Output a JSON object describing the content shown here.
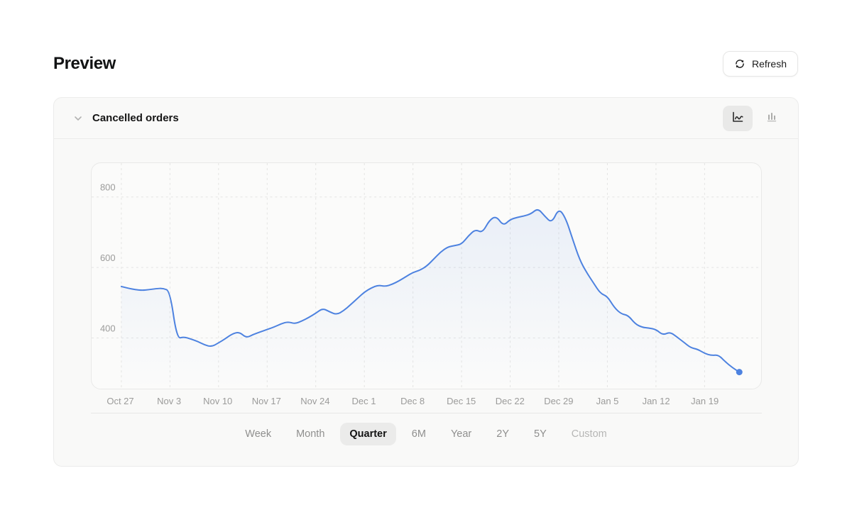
{
  "page": {
    "title": "Preview"
  },
  "toolbar": {
    "refresh_label": "Refresh",
    "refresh_icon": "refresh-icon"
  },
  "card": {
    "title": "Cancelled orders",
    "collapse_icon": "chevron-down-icon",
    "chart_type_toggles": [
      {
        "name": "line-chart",
        "active": true
      },
      {
        "name": "bar-chart",
        "active": false
      }
    ]
  },
  "range_selector": {
    "selected": "Quarter",
    "options": [
      {
        "label": "Week"
      },
      {
        "label": "Month"
      },
      {
        "label": "Quarter",
        "selected": true
      },
      {
        "label": "6M"
      },
      {
        "label": "Year"
      },
      {
        "label": "2Y"
      },
      {
        "label": "5Y"
      },
      {
        "label": "Custom",
        "muted": true
      }
    ]
  },
  "chart_data": {
    "type": "area",
    "title": "Cancelled orders",
    "x_tick_labels": [
      "Oct 27",
      "Nov 3",
      "Nov 10",
      "Nov 17",
      "Nov 24",
      "Dec 1",
      "Dec 8",
      "Dec 15",
      "Dec 22",
      "Dec 29",
      "Jan 5",
      "Jan 12",
      "Jan 19"
    ],
    "x_interval": "daily points, one tick per 7 days",
    "y_ticks": [
      400,
      600,
      800
    ],
    "ylim": [
      256,
      896
    ],
    "grid": "dashed",
    "legend": "none",
    "line_color": "#4d82e0",
    "axis_label_color": "#9b9b9a",
    "end_marker": true,
    "values": [
      546,
      541,
      537,
      535,
      537,
      540,
      541,
      533,
      398,
      403,
      397,
      390,
      380,
      375,
      386,
      398,
      412,
      417,
      400,
      410,
      417,
      424,
      431,
      440,
      446,
      440,
      448,
      458,
      470,
      484,
      474,
      466,
      477,
      494,
      512,
      530,
      542,
      550,
      546,
      552,
      562,
      574,
      586,
      592,
      604,
      624,
      644,
      658,
      662,
      666,
      690,
      708,
      698,
      734,
      746,
      718,
      736,
      742,
      746,
      752,
      768,
      745,
      726,
      768,
      740,
      680,
      622,
      586,
      556,
      526,
      518,
      486,
      468,
      464,
      440,
      430,
      428,
      424,
      408,
      417,
      403,
      388,
      372,
      368,
      356,
      350,
      352,
      332,
      316,
      303
    ]
  }
}
